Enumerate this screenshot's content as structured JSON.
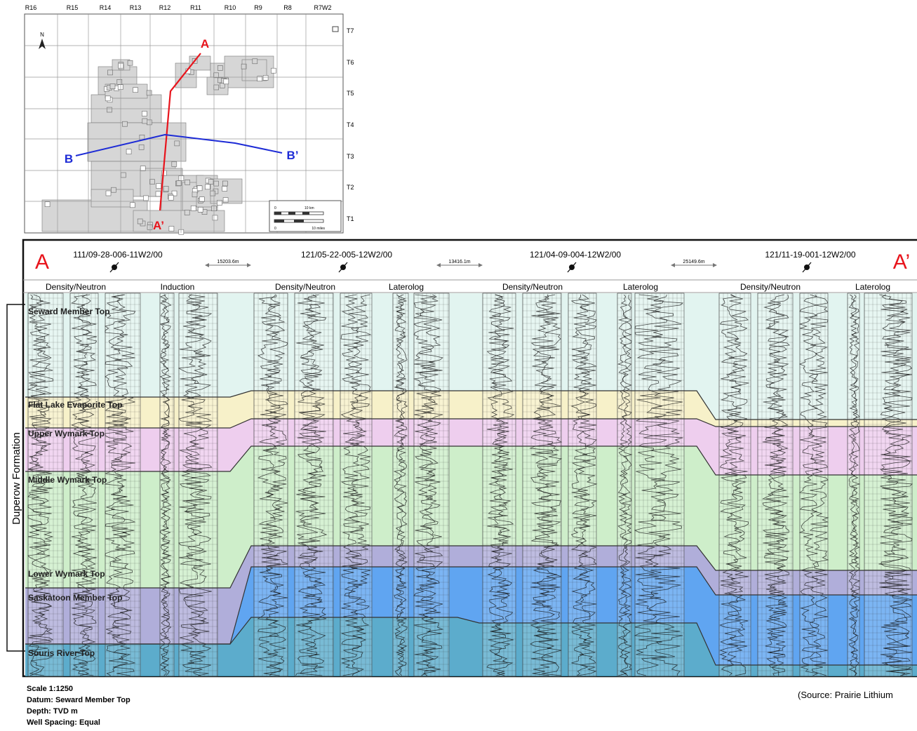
{
  "map": {
    "range_labels": [
      "R16",
      "R15",
      "R14",
      "R13",
      "R12",
      "R11",
      "R10",
      "R9",
      "R8",
      "R7W2"
    ],
    "township_labels": [
      "T7",
      "T6",
      "T5",
      "T4",
      "T3",
      "T2",
      "T1"
    ],
    "north_label": "N",
    "section_a": {
      "start": "A",
      "end": "A’",
      "color": "#e8141c"
    },
    "section_b": {
      "start": "B",
      "end": "B’",
      "color": "#1d2bd6"
    },
    "scale_km": "10 km",
    "scale_miles": "10 miles",
    "scale_zero_km": "0",
    "scale_zero_miles": "0"
  },
  "section": {
    "start_label": "A",
    "end_label": "A’",
    "wells": [
      {
        "id": "111/09-28-006-11W2/00",
        "log_left": "Density/Neutron",
        "log_right": "Induction"
      },
      {
        "id": "121/05-22-005-12W2/00",
        "log_left": "Density/Neutron",
        "log_right": "Laterolog"
      },
      {
        "id": "121/04-09-004-12W2/00",
        "log_left": "Density/Neutron",
        "log_right": "Laterolog"
      },
      {
        "id": "121/11-19-001-12W2/00",
        "log_left": "Density/Neutron",
        "log_right": "Laterolog"
      }
    ],
    "spacings": [
      "15203.6m",
      "13416.1m",
      "25149.6m"
    ],
    "formation_label": "Duperow Formation",
    "tops": [
      {
        "name": "Seward Member Top",
        "color": "#dff3ee"
      },
      {
        "name": "Flat Lake Evaporite Top",
        "color": "#f6efc3"
      },
      {
        "name": "Upper Wymark Top",
        "color": "#ecc9ec"
      },
      {
        "name": "Middle Wymark Top",
        "color": "#c9ecc4"
      },
      {
        "name": "Lower Wymark Top",
        "color": "#a7a5d6"
      },
      {
        "name": "Saskatoon Member Top",
        "color": "#4f9bef"
      },
      {
        "name": "Souris River Top",
        "color": "#4aa3c6"
      }
    ]
  },
  "notes": {
    "scale": "Scale 1:1250",
    "datum": "Datum: Seward Member Top",
    "depth": "Depth: TVD m",
    "spacing": "Well Spacing: Equal",
    "source": "(Source: Prairie Lithium"
  }
}
